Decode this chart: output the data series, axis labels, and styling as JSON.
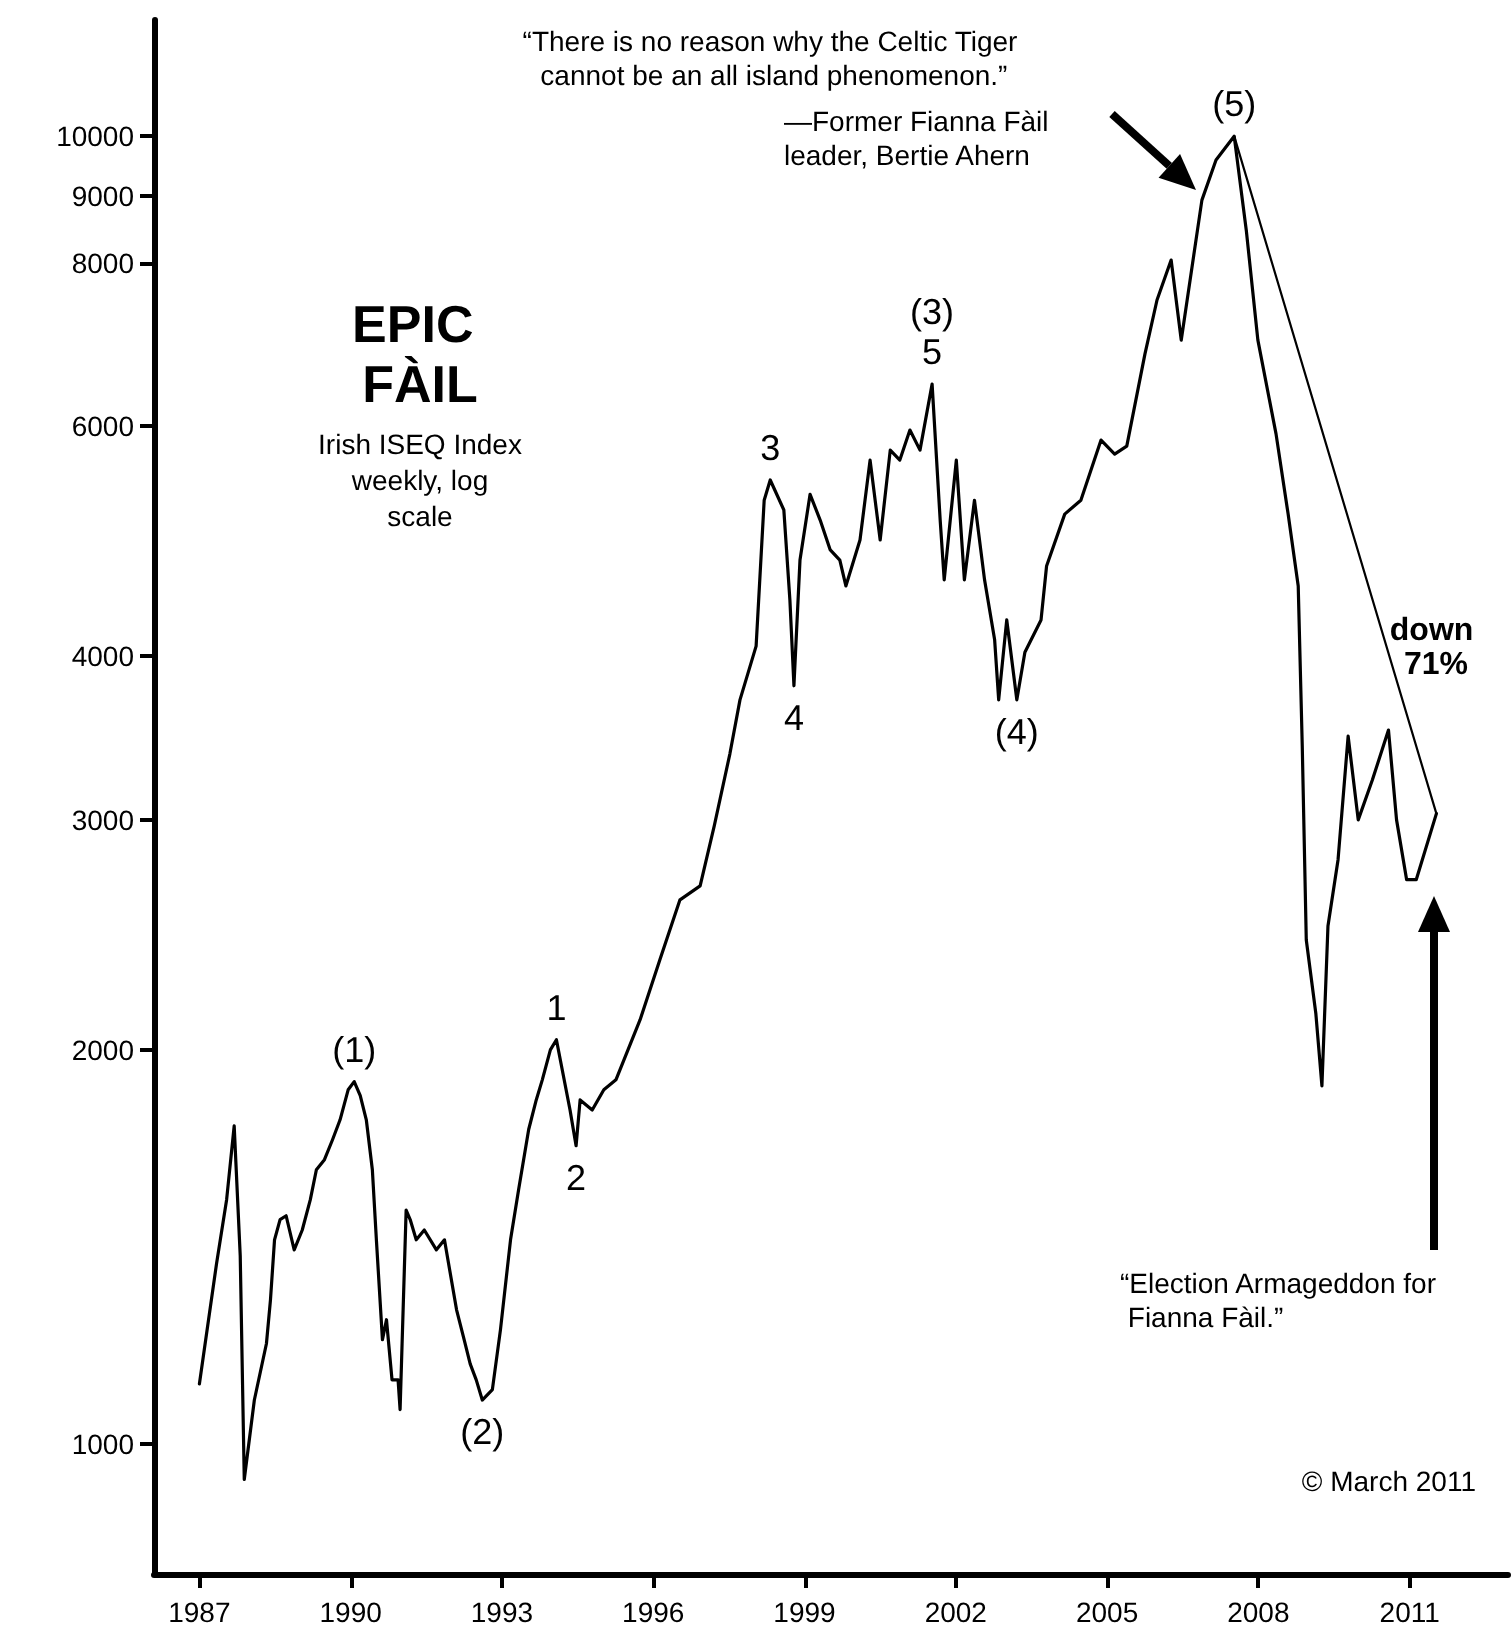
{
  "chart_data": {
    "type": "line",
    "title": "EPIC FÀIL",
    "subtitle": "Irish ISEQ Index weekly, log scale",
    "xlim": [
      1986.1,
      2012.95
    ],
    "xticks": [
      1987,
      1990,
      1993,
      1996,
      1999,
      2002,
      2005,
      2008,
      2011
    ],
    "ylim": [
      795,
      12270
    ],
    "yticks": [
      1000,
      2000,
      3000,
      4000,
      6000,
      8000,
      9000,
      10000
    ],
    "log": "y",
    "grid": false,
    "marker": "none",
    "line_style": "solid",
    "x": [
      1987.0,
      1987.34,
      1987.54,
      1987.69,
      1987.81,
      1987.89,
      1988.09,
      1988.33,
      1988.41,
      1988.49,
      1988.6,
      1988.72,
      1988.88,
      1989.04,
      1989.2,
      1989.32,
      1989.48,
      1989.64,
      1989.79,
      1989.95,
      1990.07,
      1990.19,
      1990.31,
      1990.43,
      1990.51,
      1990.63,
      1990.71,
      1990.82,
      1990.94,
      1990.98,
      1991.1,
      1991.18,
      1991.3,
      1991.46,
      1991.7,
      1991.86,
      1992.1,
      1992.25,
      1992.37,
      1992.49,
      1992.61,
      1992.81,
      1992.97,
      1993.17,
      1993.33,
      1993.53,
      1993.68,
      1993.8,
      1993.96,
      1994.08,
      1994.35,
      1994.47,
      1994.55,
      1994.79,
      1995.02,
      1995.26,
      1995.74,
      1996.13,
      1996.53,
      1996.93,
      1997.21,
      1997.52,
      1997.72,
      1998.04,
      1998.2,
      1998.32,
      1998.59,
      1998.71,
      1998.79,
      1998.91,
      1999.11,
      1999.31,
      1999.51,
      1999.7,
      1999.82,
      2000.1,
      2000.3,
      2000.5,
      2000.7,
      2000.89,
      2001.09,
      2001.29,
      2001.53,
      2001.69,
      2001.77,
      2002.01,
      2002.17,
      2002.37,
      2002.57,
      2002.77,
      2002.85,
      2003.01,
      2003.21,
      2003.37,
      2003.69,
      2003.8,
      2004.16,
      2004.48,
      2004.88,
      2005.15,
      2005.39,
      2005.75,
      2005.99,
      2006.27,
      2006.47,
      2006.88,
      2007.16,
      2007.52,
      2007.76,
      2007.99,
      2008.35,
      2008.59,
      2008.79,
      2008.87,
      2008.95,
      2009.14,
      2009.26,
      2009.38,
      2009.58,
      2009.78,
      2009.98,
      2010.26,
      2010.58,
      2010.74,
      2010.94,
      2011.13,
      2011.53
    ],
    "series": [
      {
        "color": "#000000",
        "values": [
          1111,
          1373,
          1537,
          1750,
          1392,
          939,
          1080,
          1193,
          1289,
          1432,
          1484,
          1494,
          1407,
          1457,
          1537,
          1620,
          1649,
          1708,
          1769,
          1865,
          1892,
          1846,
          1769,
          1620,
          1432,
          1201,
          1244,
          1119,
          1119,
          1062,
          1509,
          1484,
          1432,
          1457,
          1407,
          1432,
          1266,
          1201,
          1151,
          1119,
          1080,
          1100,
          1222,
          1432,
          1564,
          1739,
          1832,
          1898,
          2001,
          2037,
          1800,
          1690,
          1832,
          1800,
          1865,
          1898,
          2110,
          2344,
          2606,
          2671,
          2968,
          3370,
          3706,
          4074,
          5267,
          5458,
          5177,
          4418,
          3799,
          4740,
          5322,
          5086,
          4826,
          4740,
          4529,
          4911,
          5653,
          4911,
          5753,
          5653,
          5960,
          5753,
          6463,
          5086,
          4578,
          5653,
          4578,
          5267,
          4578,
          4119,
          3706,
          4266,
          3706,
          4030,
          4266,
          4691,
          5140,
          5267,
          5856,
          5713,
          5794,
          6812,
          7494,
          8040,
          6982,
          8935,
          9588,
          10000,
          8474,
          6982,
          5920,
          5140,
          4529,
          3417,
          2428,
          2132,
          1878,
          2489,
          2797,
          3477,
          3000,
          3218,
          3514,
          3000,
          2700,
          2700,
          3033
        ]
      },
      {
        "color": "#000000",
        "x": [
          2007.52,
          2011.53
        ],
        "values": [
          10000,
          3033
        ]
      }
    ],
    "annotations": [
      "“There is no reason why the Celtic Tiger cannot be an all island phenomenon.”",
      "—Former Fianna Fàil leader, Bertie Ahern",
      "“Election Armageddon for Fianna Fàil.”",
      "© March 2011",
      "down 71%",
      {
        "text": "(1)",
        "x": 1990.07,
        "y": 1892
      },
      {
        "text": "(2)",
        "x": 1992.61,
        "y": 1080
      },
      {
        "text": "1",
        "x": 1994.08,
        "y": 2037
      },
      {
        "text": "2",
        "x": 1994.47,
        "y": 1690
      },
      {
        "text": "3",
        "x": 1998.32,
        "y": 5458
      },
      {
        "text": "4",
        "x": 1998.79,
        "y": 3799
      },
      {
        "text": "5",
        "x": 2001.53,
        "y": 6463
      },
      {
        "text": "(3)",
        "x": 2001.53,
        "y": 6463
      },
      {
        "text": "(4)",
        "x": 2003.21,
        "y": 3706
      },
      {
        "text": "(5)",
        "x": 2007.52,
        "y": 10000
      }
    ]
  }
}
